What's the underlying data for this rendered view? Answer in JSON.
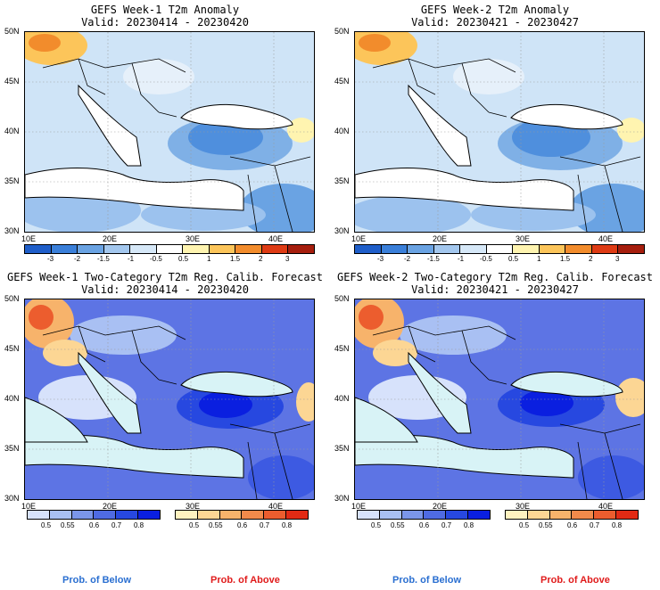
{
  "panels": [
    {
      "title": "GEFS Week-1 T2m Anomaly",
      "valid": "Valid: 20230414 - 20230420"
    },
    {
      "title": "GEFS Week-2 T2m Anomaly",
      "valid": "Valid: 20230421 - 20230427"
    },
    {
      "title": "GEFS Week-1 Two-Category T2m Reg. Calib. Forecast",
      "valid": "Valid: 20230414 - 20230420"
    },
    {
      "title": "GEFS Week-2 Two-Category T2m Reg. Calib. Forecast",
      "valid": "Valid: 20230421 - 20230427"
    }
  ],
  "axes": {
    "lat_labels": [
      "50N",
      "45N",
      "40N",
      "35N",
      "30N"
    ],
    "lon_labels": [
      "10E",
      "20E",
      "30E",
      "40E"
    ]
  },
  "anomaly_scale": {
    "labels": [
      "-3",
      "-2",
      "-1.5",
      "-1",
      "-0.5",
      "0.5",
      "1",
      "1.5",
      "2",
      "3"
    ],
    "colors": [
      "#1f5ec9",
      "#3a7fd9",
      "#6aa3e3",
      "#a3c7ee",
      "#d6e8f8",
      "#ffffff",
      "#fff4b0",
      "#fcc55a",
      "#f28c2c",
      "#de3b14",
      "#a61e0d"
    ]
  },
  "prob_scale": {
    "below_labels": [
      "0.5",
      "0.55",
      "0.6",
      "0.7",
      "0.8"
    ],
    "below_colors": [
      "#d7e2fb",
      "#a9c0f3",
      "#7b96ea",
      "#4f6be3",
      "#2748e0",
      "#0a1fe0"
    ],
    "above_labels": [
      "0.5",
      "0.55",
      "0.6",
      "0.7",
      "0.8"
    ],
    "above_colors": [
      "#fff2c0",
      "#fcd694",
      "#f7b36b",
      "#f28a4b",
      "#ec5d2e",
      "#e22a14"
    ]
  },
  "legend": {
    "below": "Prob. of Below",
    "above": "Prob. of Above",
    "below_color": "#2a6fd1",
    "above_color": "#e01b1b"
  },
  "colors": {
    "water_anom": "#ffffff",
    "water_prob": "#d8f3f6",
    "land_base_anom": "#cfe4f7",
    "land_base_prob": "#7f97ea"
  }
}
